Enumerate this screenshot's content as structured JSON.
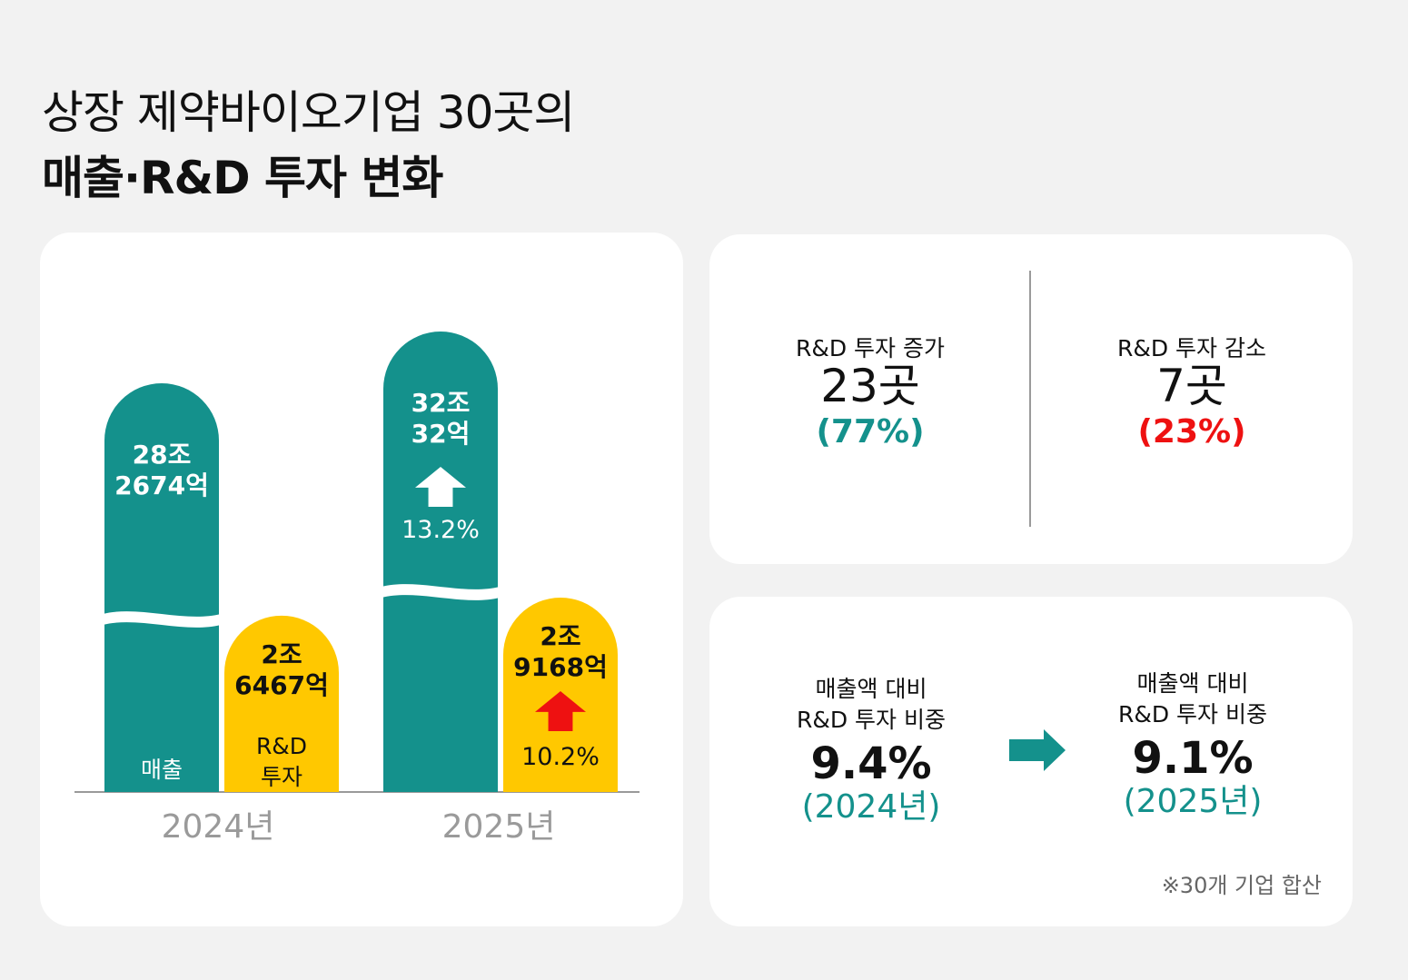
{
  "title": {
    "line1": "상장 제약바이오기업 30곳의",
    "line2": "매출·R&D 투자 변화"
  },
  "colors": {
    "teal": "#14918c",
    "yellow": "#ffc800",
    "red": "#ee1111",
    "white": "#ffffff"
  },
  "chart_data": {
    "type": "bar",
    "categories": [
      "2024년",
      "2025년"
    ],
    "series": [
      {
        "name": "매출",
        "values": [
          282674,
          320032
        ],
        "value_labels": [
          [
            "28조",
            "2674억"
          ],
          [
            "32조",
            "32억"
          ]
        ],
        "change_label": "13.2%"
      },
      {
        "name": "R&D 투자",
        "name_lines": [
          "R&D",
          "투자"
        ],
        "values": [
          26467,
          29168
        ],
        "value_labels": [
          [
            "2조",
            "6467억"
          ],
          [
            "2조",
            "9168억"
          ]
        ],
        "change_label": "10.2%"
      }
    ],
    "axis_break": true
  },
  "counts": {
    "increase": {
      "label": "R&D 투자 증가",
      "value": "23곳",
      "pct": "(77%)"
    },
    "decrease": {
      "label": "R&D 투자 감소",
      "value": "7곳",
      "pct": "(23%)"
    }
  },
  "ratio": {
    "before": {
      "label1": "매출액 대비",
      "label2": "R&D 투자 비중",
      "value": "9.4%",
      "year": "(2024년)"
    },
    "after": {
      "label1": "매출액 대비",
      "label2": "R&D 투자 비중",
      "value": "9.1%",
      "year": "(2025년)"
    },
    "arrow_icon": "arrow-right-icon"
  },
  "footnote": "※30개 기업 합산"
}
